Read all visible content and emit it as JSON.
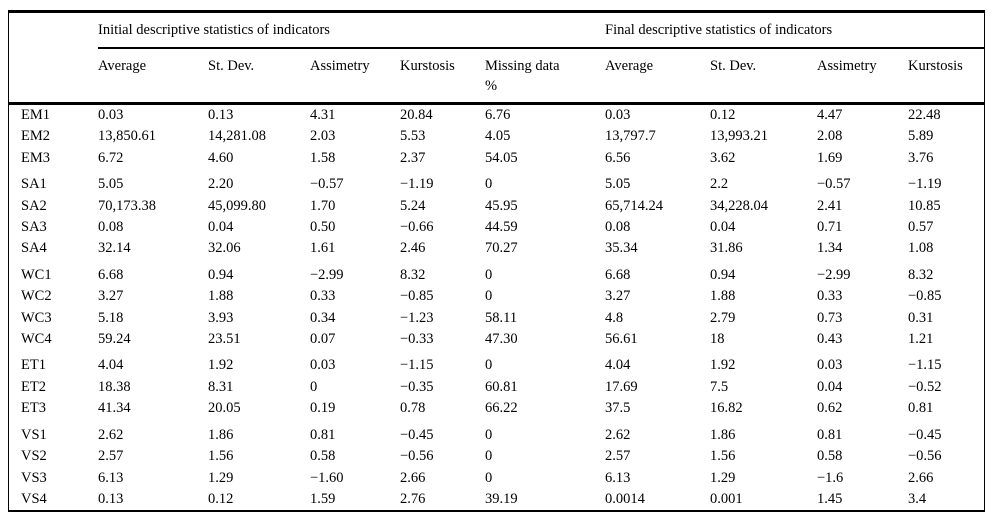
{
  "table": {
    "group_headers": [
      "Initial descriptive statistics of indicators",
      "Final descriptive statistics of indicators"
    ],
    "columns": [
      "Average",
      "St. Dev.",
      "Assimetry",
      "Kurstosis",
      "Missing data\n%",
      "Average",
      "St. Dev.",
      "Assimetry",
      "Kurstosis"
    ],
    "rows": [
      {
        "label": "EM1",
        "values": [
          "0.03",
          "0.13",
          "4.31",
          "20.84",
          "6.76",
          "0.03",
          "0.12",
          "4.47",
          "22.48"
        ]
      },
      {
        "label": "EM2",
        "values": [
          "13,850.61",
          "14,281.08",
          "2.03",
          "5.53",
          "4.05",
          "13,797.7",
          "13,993.21",
          "2.08",
          "5.89"
        ]
      },
      {
        "label": "EM3",
        "values": [
          "6.72",
          "4.60",
          "1.58",
          "2.37",
          "54.05",
          "6.56",
          "3.62",
          "1.69",
          "3.76"
        ]
      },
      {
        "label": "SA1",
        "values": [
          "5.05",
          "2.20",
          "−0.57",
          "−1.19",
          "0",
          "5.05",
          "2.2",
          "−0.57",
          "−1.19"
        ]
      },
      {
        "label": "SA2",
        "values": [
          "70,173.38",
          "45,099.80",
          "1.70",
          "5.24",
          "45.95",
          "65,714.24",
          "34,228.04",
          "2.41",
          "10.85"
        ]
      },
      {
        "label": "SA3",
        "values": [
          "0.08",
          "0.04",
          "0.50",
          "−0.66",
          "44.59",
          "0.08",
          "0.04",
          "0.71",
          "0.57"
        ]
      },
      {
        "label": "SA4",
        "values": [
          "32.14",
          "32.06",
          "1.61",
          "2.46",
          "70.27",
          "35.34",
          "31.86",
          "1.34",
          "1.08"
        ]
      },
      {
        "label": "WC1",
        "values": [
          "6.68",
          "0.94",
          "−2.99",
          "8.32",
          "0",
          "6.68",
          "0.94",
          "−2.99",
          "8.32"
        ]
      },
      {
        "label": "WC2",
        "values": [
          "3.27",
          "1.88",
          "0.33",
          "−0.85",
          "0",
          "3.27",
          "1.88",
          "0.33",
          "−0.85"
        ]
      },
      {
        "label": "WC3",
        "values": [
          "5.18",
          "3.93",
          "0.34",
          "−1.23",
          "58.11",
          "4.8",
          "2.79",
          "0.73",
          "0.31"
        ]
      },
      {
        "label": "WC4",
        "values": [
          "59.24",
          "23.51",
          "0.07",
          "−0.33",
          "47.30",
          "56.61",
          "18",
          "0.43",
          "1.21"
        ]
      },
      {
        "label": "ET1",
        "values": [
          "4.04",
          "1.92",
          "0.03",
          "−1.15",
          "0",
          "4.04",
          "1.92",
          "0.03",
          "−1.15"
        ]
      },
      {
        "label": "ET2",
        "values": [
          "18.38",
          "8.31",
          "0",
          "−0.35",
          "60.81",
          "17.69",
          "7.5",
          "0.04",
          "−0.52"
        ]
      },
      {
        "label": "ET3",
        "values": [
          "41.34",
          "20.05",
          "0.19",
          "0.78",
          "66.22",
          "37.5",
          "16.82",
          "0.62",
          "0.81"
        ]
      },
      {
        "label": "VS1",
        "values": [
          "2.62",
          "1.86",
          "0.81",
          "−0.45",
          "0",
          "2.62",
          "1.86",
          "0.81",
          "−0.45"
        ]
      },
      {
        "label": "VS2",
        "values": [
          "2.57",
          "1.56",
          "0.58",
          "−0.56",
          "0",
          "2.57",
          "1.56",
          "0.58",
          "−0.56"
        ]
      },
      {
        "label": "VS3",
        "values": [
          "6.13",
          "1.29",
          "−1.60",
          "2.66",
          "0",
          "6.13",
          "1.29",
          "−1.6",
          "2.66"
        ]
      },
      {
        "label": "VS4",
        "values": [
          "0.13",
          "0.12",
          "1.59",
          "2.76",
          "39.19",
          "0.0014",
          "0.001",
          "1.45",
          "3.4"
        ]
      }
    ]
  }
}
